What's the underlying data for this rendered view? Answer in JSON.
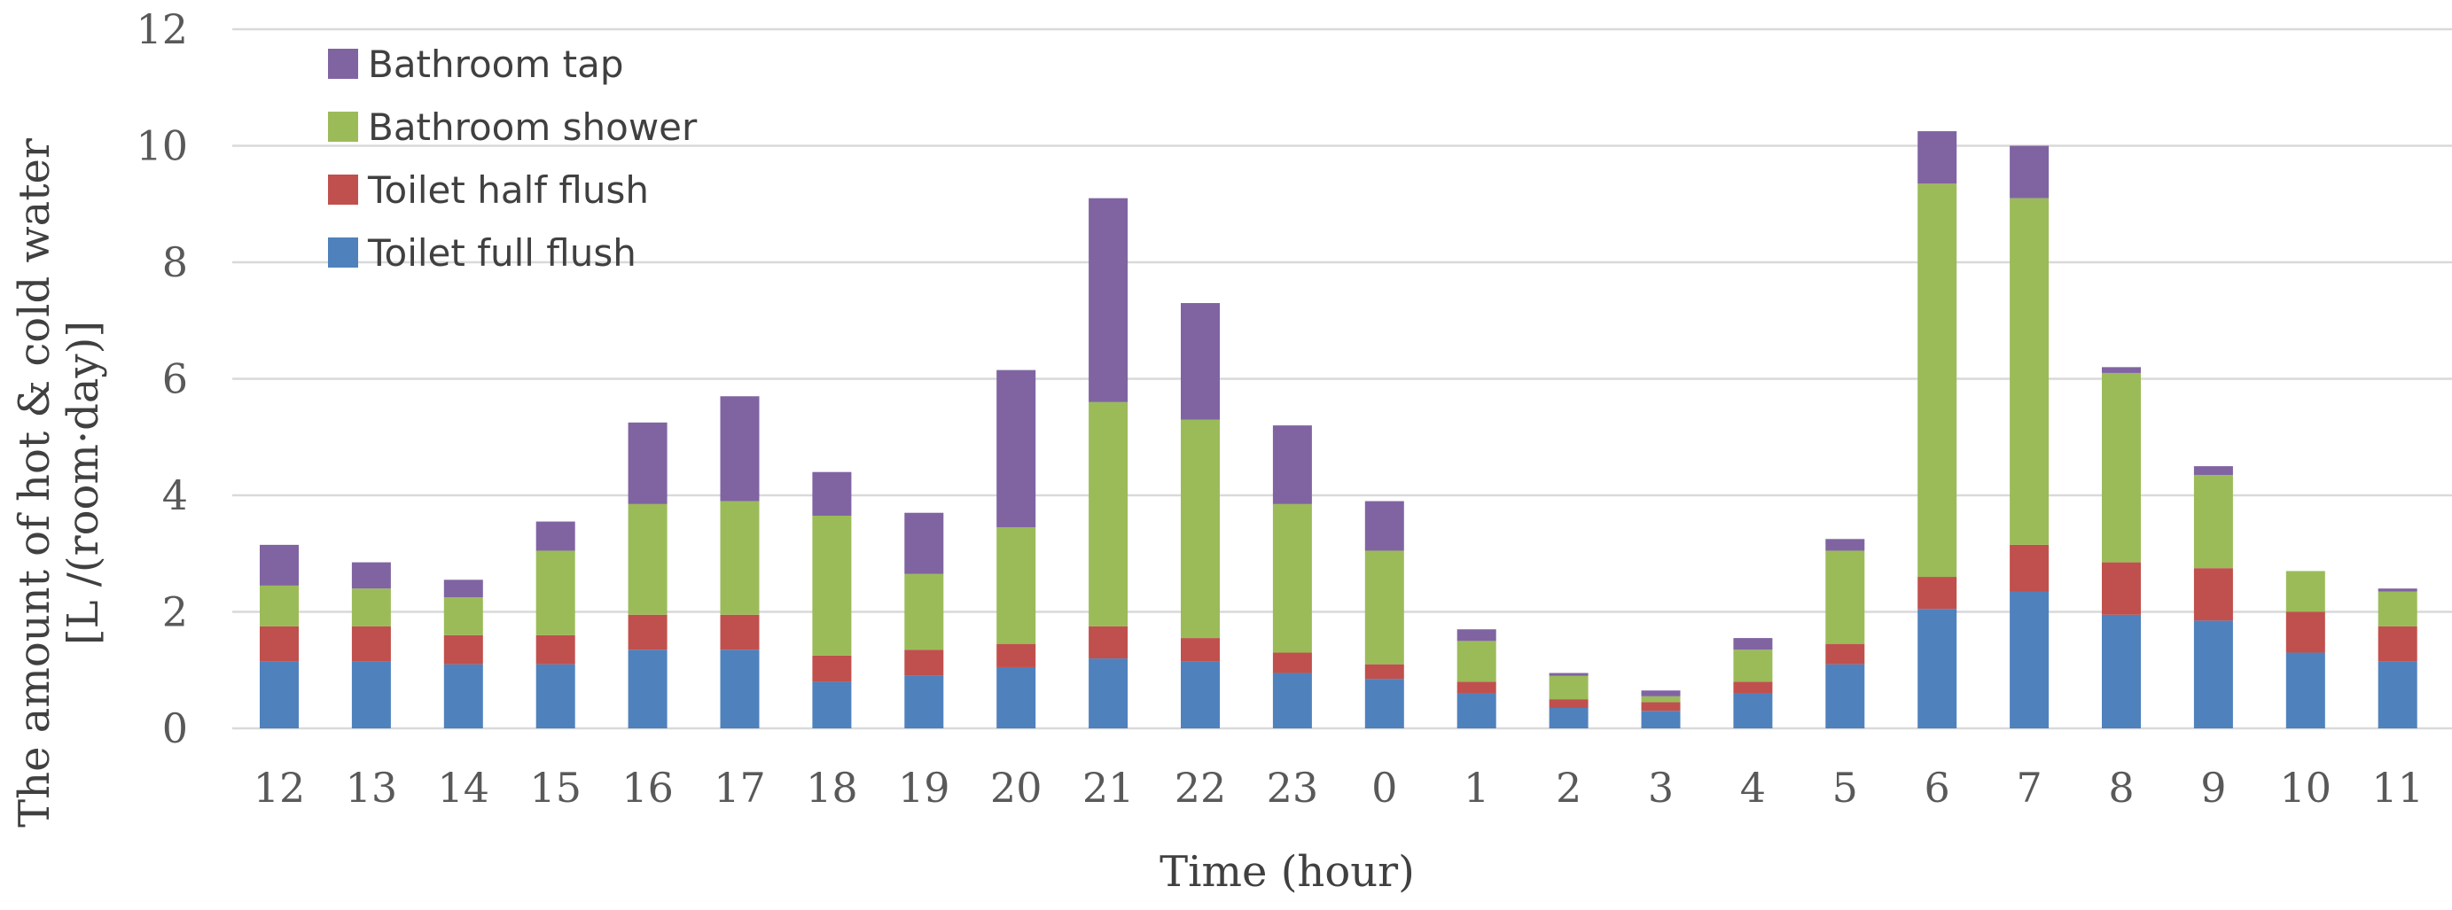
{
  "chart_data": {
    "type": "bar",
    "stacked": true,
    "title": "",
    "xlabel": "Time (hour)",
    "ylabel_lines": [
      "The amount of hot & cold water",
      "[L /(room·day)]"
    ],
    "ylim": [
      0,
      12
    ],
    "yticks": [
      0,
      2,
      4,
      6,
      8,
      10,
      12
    ],
    "grid": true,
    "legend_position": "top-left",
    "categories": [
      "12",
      "13",
      "14",
      "15",
      "16",
      "17",
      "18",
      "19",
      "20",
      "21",
      "22",
      "23",
      "0",
      "1",
      "2",
      "3",
      "4",
      "5",
      "6",
      "7",
      "8",
      "9",
      "10",
      "11"
    ],
    "series": [
      {
        "name": "Toilet full flush",
        "color": "#4f81bd",
        "values": [
          1.15,
          1.15,
          1.1,
          1.1,
          1.35,
          1.35,
          0.8,
          0.9,
          1.05,
          1.2,
          1.15,
          0.95,
          0.85,
          0.6,
          0.35,
          0.3,
          0.6,
          1.1,
          2.05,
          2.35,
          1.95,
          1.85,
          1.3,
          1.15
        ]
      },
      {
        "name": "Toilet half flush",
        "color": "#c0504d",
        "values": [
          0.6,
          0.6,
          0.5,
          0.5,
          0.6,
          0.6,
          0.45,
          0.45,
          0.4,
          0.55,
          0.4,
          0.35,
          0.25,
          0.2,
          0.15,
          0.15,
          0.2,
          0.35,
          0.55,
          0.8,
          0.9,
          0.9,
          0.7,
          0.6
        ]
      },
      {
        "name": "Bathroom shower",
        "color": "#9bbb59",
        "values": [
          0.7,
          0.65,
          0.65,
          1.45,
          1.9,
          1.95,
          2.4,
          1.3,
          2.0,
          3.85,
          3.75,
          2.55,
          1.95,
          0.7,
          0.4,
          0.1,
          0.55,
          1.6,
          6.75,
          5.95,
          3.25,
          1.6,
          0.7,
          0.6
        ]
      },
      {
        "name": "Bathroom tap",
        "color": "#8064a2",
        "values": [
          0.7,
          0.45,
          0.3,
          0.5,
          1.4,
          1.8,
          0.75,
          1.05,
          2.7,
          3.5,
          2.0,
          1.35,
          0.85,
          0.2,
          0.05,
          0.1,
          0.2,
          0.2,
          0.9,
          0.9,
          0.1,
          0.15,
          0.0,
          0.05
        ]
      }
    ]
  }
}
